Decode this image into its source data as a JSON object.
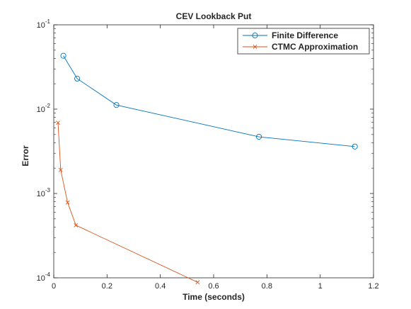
{
  "chart_data": {
    "type": "line",
    "title": "CEV Lookback Put",
    "xlabel": "Time (seconds)",
    "ylabel": "Error",
    "xlim": [
      0,
      1.2
    ],
    "ylim_exponents": [
      -4,
      -1
    ],
    "y_scale": "log",
    "grid": false,
    "legend_position": "top-right",
    "x_ticks": [
      0,
      0.2,
      0.4,
      0.6,
      0.8,
      1,
      1.2
    ],
    "x_tick_labels": [
      "0",
      "0.2",
      "0.4",
      "0.6",
      "0.8",
      "1",
      "1.2"
    ],
    "y_ticks": [
      {
        "base": "10",
        "exp": "-4",
        "value": 0.0001
      },
      {
        "base": "10",
        "exp": "-3",
        "value": 0.001
      },
      {
        "base": "10",
        "exp": "-2",
        "value": 0.01
      },
      {
        "base": "10",
        "exp": "-1",
        "value": 0.1
      }
    ],
    "series": [
      {
        "name": "Finite Difference",
        "color": "#0072BD",
        "marker": "circle",
        "x": [
          0.036,
          0.088,
          0.235,
          0.77,
          1.13
        ],
        "y": [
          0.043,
          0.023,
          0.0112,
          0.0047,
          0.0036
        ]
      },
      {
        "name": "CTMC Approximation",
        "color": "#D95319",
        "marker": "x",
        "x": [
          0.016,
          0.026,
          0.052,
          0.083,
          0.54
        ],
        "y": [
          0.0069,
          0.0019,
          0.00078,
          0.00042,
          8.85e-05
        ]
      }
    ]
  }
}
